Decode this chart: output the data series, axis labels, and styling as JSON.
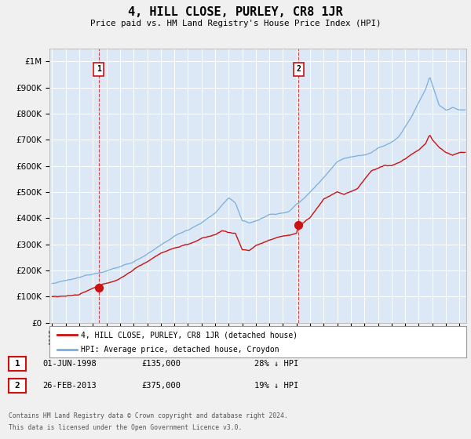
{
  "title": "4, HILL CLOSE, PURLEY, CR8 1JR",
  "subtitle": "Price paid vs. HM Land Registry's House Price Index (HPI)",
  "legend_label_red": "4, HILL CLOSE, PURLEY, CR8 1JR (detached house)",
  "legend_label_blue": "HPI: Average price, detached house, Croydon",
  "transaction1": {
    "date": "01-JUN-1998",
    "price": 135000,
    "label": "1",
    "year": 1998.42
  },
  "transaction2": {
    "date": "26-FEB-2013",
    "price": 375000,
    "label": "2",
    "year": 2013.15
  },
  "ann1_date": "01-JUN-1998",
  "ann1_price": "£135,000",
  "ann1_hpi": "28% ↓ HPI",
  "ann2_date": "26-FEB-2013",
  "ann2_price": "£375,000",
  "ann2_hpi": "19% ↓ HPI",
  "footnote3": "Contains HM Land Registry data © Crown copyright and database right 2024.",
  "footnote4": "This data is licensed under the Open Government Licence v3.0.",
  "ylim": [
    0,
    1050000
  ],
  "xlim_start": 1994.8,
  "xlim_end": 2025.5,
  "plot_bg": "#dce8f5",
  "fig_bg": "#f0f0f0",
  "red_color": "#cc1111",
  "blue_color": "#7aaedc"
}
